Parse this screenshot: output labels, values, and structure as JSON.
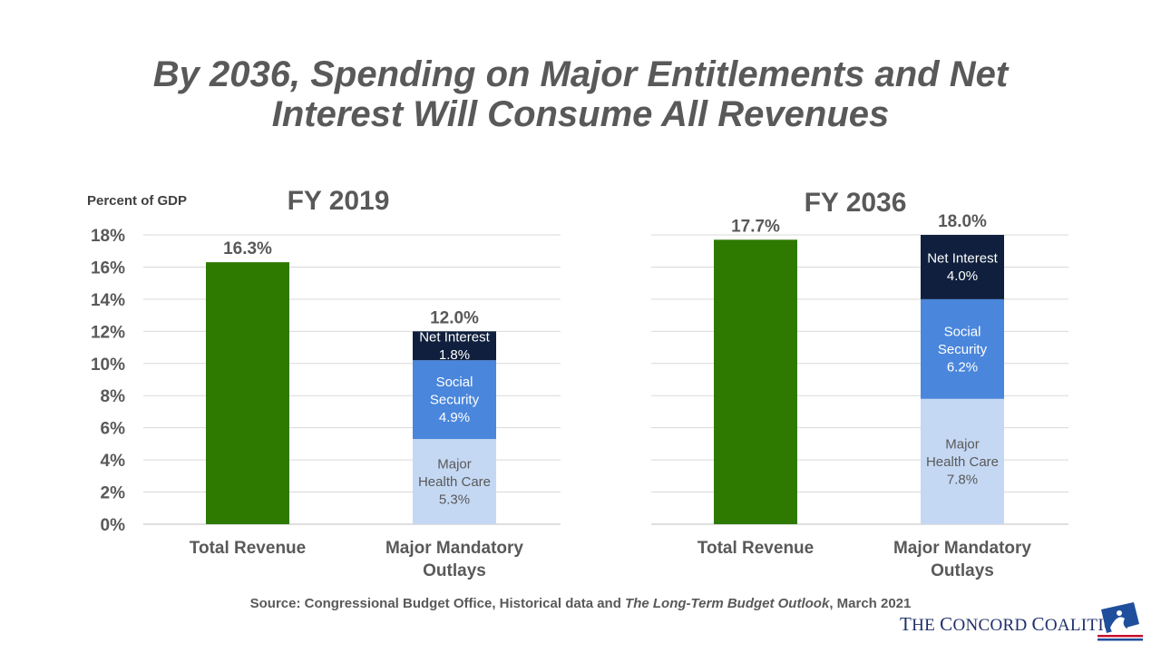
{
  "title_lines": [
    "By 2036, Spending on Major Entitlements and Net",
    "Interest Will Consume All Revenues"
  ],
  "chart_data": [
    {
      "type": "bar",
      "title": "FY 2019",
      "ylabel": "Percent of GDP",
      "ylim": [
        0,
        18
      ],
      "yticks": [
        0,
        2,
        4,
        6,
        8,
        10,
        12,
        14,
        16,
        18
      ],
      "ytick_labels": [
        "0%",
        "2%",
        "4%",
        "6%",
        "8%",
        "10%",
        "12%",
        "14%",
        "16%",
        "18%"
      ],
      "categories": [
        "Total Revenue",
        "Major Mandatory Outlays"
      ],
      "category_lines": [
        [
          "Total Revenue"
        ],
        [
          "Major Mandatory",
          "Outlays"
        ]
      ],
      "bars": [
        {
          "total": 16.3,
          "total_label": "16.3%",
          "segments": [
            {
              "series": "Total Revenue",
              "value": 16.3,
              "color": "#2e7a00",
              "label_lines": []
            }
          ]
        },
        {
          "total": 12.0,
          "total_label": "12.0%",
          "segments": [
            {
              "series": "Major Health Care",
              "value": 5.3,
              "color": "#c5d8f3",
              "text_color": "#595959",
              "label_lines": [
                "Major",
                "Health Care",
                "5.3%"
              ]
            },
            {
              "series": "Social Security",
              "value": 4.9,
              "color": "#4a86dc",
              "text_color": "#ffffff",
              "label_lines": [
                "Social",
                "Security",
                "4.9%"
              ]
            },
            {
              "series": "Net Interest",
              "value": 1.8,
              "color": "#0f1f3d",
              "text_color": "#ffffff",
              "label_lines": [
                "Net Interest",
                "1.8%"
              ]
            }
          ]
        }
      ]
    },
    {
      "type": "bar",
      "title": "FY 2036",
      "ylim": [
        0,
        18
      ],
      "yticks": [
        0,
        2,
        4,
        6,
        8,
        10,
        12,
        14,
        16,
        18
      ],
      "categories": [
        "Total Revenue",
        "Major Mandatory Outlays"
      ],
      "category_lines": [
        [
          "Total Revenue"
        ],
        [
          "Major Mandatory",
          "Outlays"
        ]
      ],
      "bars": [
        {
          "total": 17.7,
          "total_label": "17.7%",
          "segments": [
            {
              "series": "Total Revenue",
              "value": 17.7,
              "color": "#2e7a00",
              "label_lines": []
            }
          ]
        },
        {
          "total": 18.0,
          "total_label": "18.0%",
          "segments": [
            {
              "series": "Major Health Care",
              "value": 7.8,
              "color": "#c5d8f3",
              "text_color": "#595959",
              "label_lines": [
                "Major",
                "Health Care",
                "7.8%"
              ]
            },
            {
              "series": "Social Security",
              "value": 6.2,
              "color": "#4a86dc",
              "text_color": "#ffffff",
              "label_lines": [
                "Social",
                "Security",
                "6.2%"
              ]
            },
            {
              "series": "Net Interest",
              "value": 4.0,
              "color": "#0f1f3d",
              "text_color": "#ffffff",
              "label_lines": [
                "Net Interest",
                "4.0%"
              ]
            }
          ]
        }
      ]
    }
  ],
  "source": {
    "prefix": "Source: Congressional Budget Office,  Historical data and ",
    "italic": "The Long-Term Budget Outlook",
    "suffix": ", March 2021"
  },
  "logo": {
    "text_first_big": "T",
    "text_first": "HE ",
    "text_second_big": "C",
    "text_second": "ONCORD ",
    "text_third_big": "C",
    "text_third": "OALITION",
    "icon": "minuteman-flag-icon"
  }
}
